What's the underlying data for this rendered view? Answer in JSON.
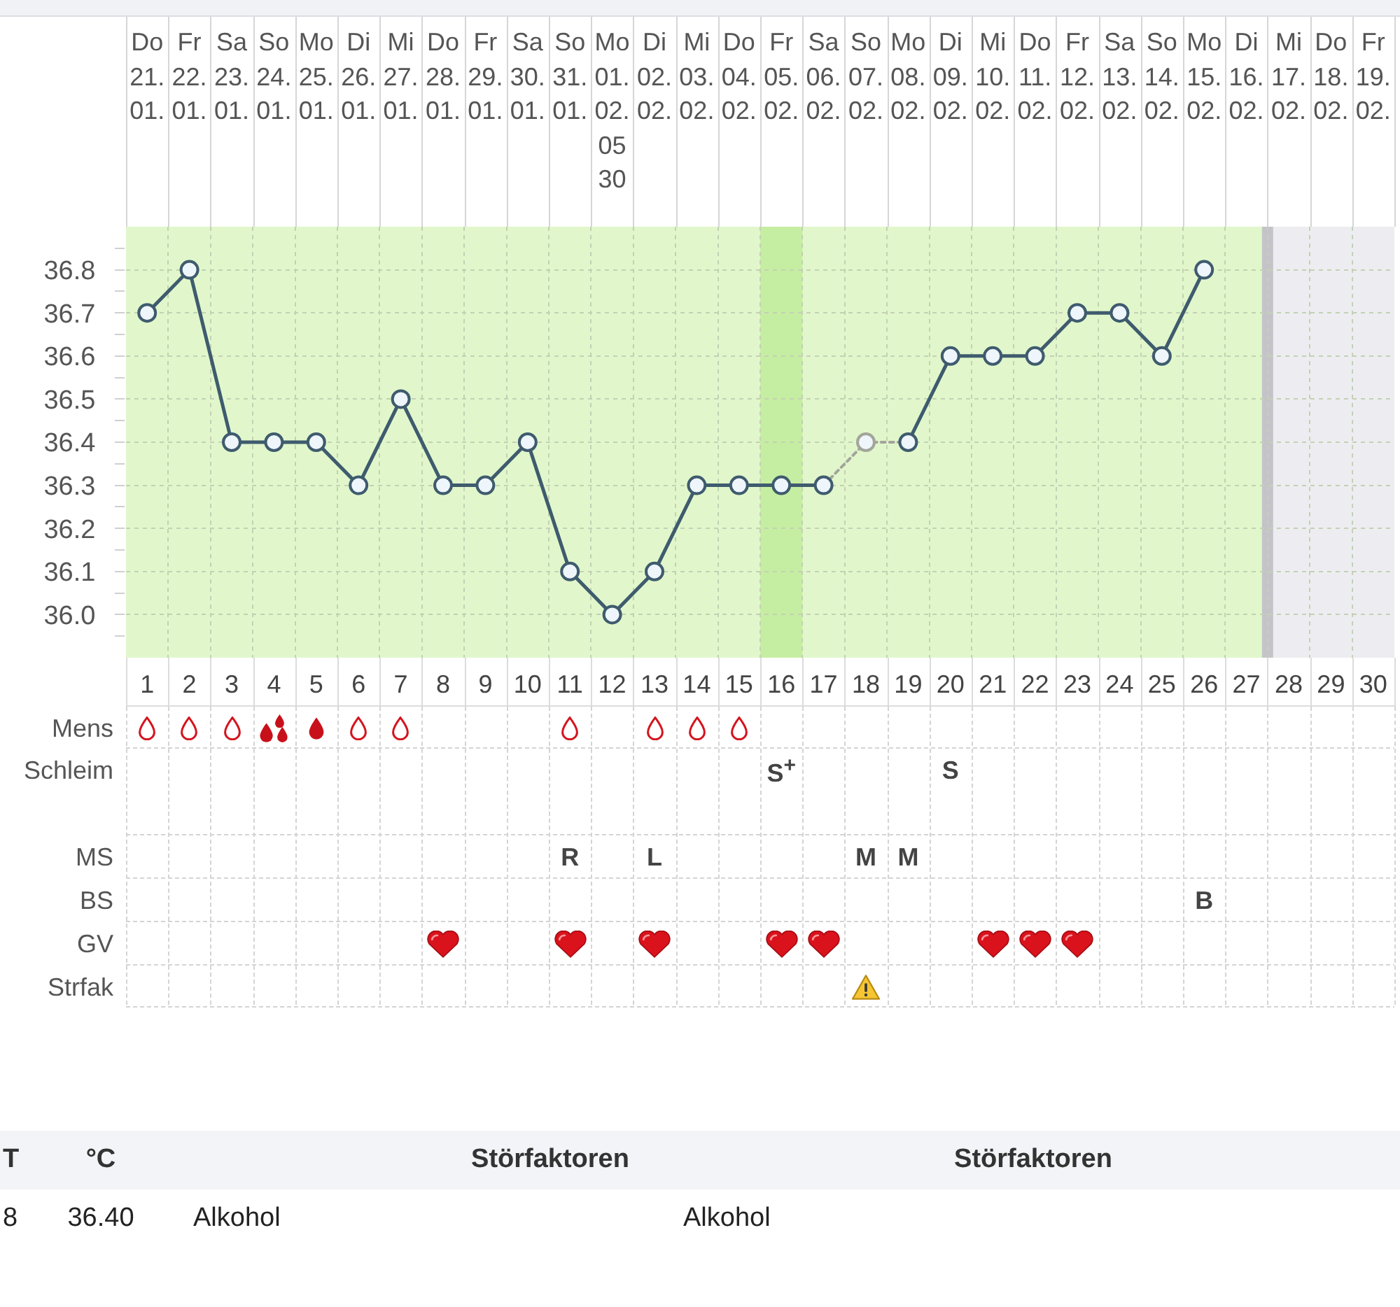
{
  "chart_data": [
    {
      "type": "line",
      "xlim": [
        0.5,
        30.5
      ],
      "xticks": [
        1,
        2,
        3,
        4,
        5,
        6,
        7,
        8,
        9,
        10,
        11,
        12,
        13,
        14,
        15,
        16,
        17,
        18,
        19,
        20,
        21,
        22,
        23,
        24,
        25,
        26,
        27,
        28,
        29,
        30
      ],
      "x2lim": [
        "--01-20T12:00",
        "--02-19T12:00"
      ],
      "x2ticks": [
        {
          "value": "--01-21",
          "label": "Do 21. 01."
        },
        {
          "value": "--01-22",
          "label": "Fr 22. 01."
        },
        {
          "value": "--01-23",
          "label": "Sa 23. 01."
        },
        {
          "value": "--01-24",
          "label": "So 24. 01."
        },
        {
          "value": "--01-25",
          "label": "Mo 25. 01."
        },
        {
          "value": "--01-26",
          "label": "Di 26. 01."
        },
        {
          "value": "--01-27",
          "label": "Mi 27. 01."
        },
        {
          "value": "--01-28",
          "label": "Do 28. 01."
        },
        {
          "value": "--01-29",
          "label": "Fr 29. 01."
        },
        {
          "value": "--01-30",
          "label": "Sa 30. 01."
        },
        {
          "value": "--01-31",
          "label": "So 31. 01."
        },
        {
          "value": "--02-01",
          "label": "Mo 01. 02. 05 30"
        },
        {
          "value": "--02-02",
          "label": "Di 02. 02."
        },
        {
          "value": "--02-03",
          "label": "Mi 03. 02."
        },
        {
          "value": "--02-04",
          "label": "Do 04. 02."
        },
        {
          "value": "--02-05",
          "label": "Fr 05. 02."
        },
        {
          "value": "--02-06",
          "label": "Sa 06. 02."
        },
        {
          "value": "--02-07",
          "label": "So 07. 02."
        },
        {
          "value": "--02-08",
          "label": "Mo 08. 02."
        },
        {
          "value": "--02-09",
          "label": "Di 09. 02."
        },
        {
          "value": "--02-10",
          "label": "Mi 10. 02."
        },
        {
          "value": "--02-11",
          "label": "Do 11. 02."
        },
        {
          "value": "--02-12",
          "label": "Fr 12. 02."
        },
        {
          "value": "--02-13",
          "label": "Sa 13. 02."
        },
        {
          "value": "--02-14",
          "label": "So 14. 02."
        },
        {
          "value": "--02-15",
          "label": "Mo 15. 02."
        },
        {
          "value": "--02-16",
          "label": "Di 16. 02."
        },
        {
          "value": "--02-17",
          "label": "Mi 17. 02."
        },
        {
          "value": "--02-18",
          "label": "Do 18. 02."
        },
        {
          "value": "--02-19",
          "label": "Fr 19. 02."
        }
      ],
      "ylim": [
        35.9,
        36.9
      ],
      "yticks": [
        {
          "value": 35.95,
          "label": null
        },
        {
          "value": 36,
          "label": "36.0"
        },
        {
          "value": 36.05,
          "label": null
        },
        36.1,
        {
          "value": 36.15,
          "label": null
        },
        36.2,
        {
          "value": 36.25,
          "label": null
        },
        36.3,
        {
          "value": 36.35,
          "label": null
        },
        36.4,
        {
          "value": 36.45,
          "label": null
        },
        36.5,
        {
          "value": 36.55,
          "label": null
        },
        36.6,
        {
          "value": 36.65,
          "label": null
        },
        36.7,
        {
          "value": 36.75,
          "label": null
        },
        36.8,
        {
          "value": 36.85,
          "label": null
        }
      ],
      "grid": true,
      "marker": "circle",
      "line_style": "solid",
      "bands": [
        {
          "axis": "x",
          "from": 0.5,
          "to": 27.5,
          "color": "#e1f7cb"
        },
        {
          "axis": "x",
          "from": 15.5,
          "to": 16.5,
          "color": "#c6eea2"
        },
        {
          "axis": "x",
          "from": 27.5,
          "to": 30.5,
          "color": "#ededf1"
        }
      ],
      "ref_lines": [
        {
          "axis": "x",
          "value": 27.5,
          "color": "#c4c4c8"
        }
      ],
      "series": [
        {
          "type": "line",
          "color": "#a3a59b",
          "line_style": "dotted",
          "marker": "none",
          "x": [
            17,
            18,
            19
          ],
          "values": [
            36.3,
            36.4,
            36.4
          ]
        },
        {
          "type": "scatter",
          "color": "#a3a59b",
          "x": [
            18
          ],
          "values": [
            36.4
          ]
        },
        {
          "type": "line",
          "color": "#3f5b6e",
          "x": [
            1,
            2,
            3,
            4,
            5,
            6,
            7,
            8,
            9,
            10,
            11,
            12,
            13,
            14,
            15,
            16,
            17,
            18,
            19,
            20,
            21,
            22,
            23,
            24,
            25,
            26
          ],
          "values": [
            36.7,
            36.8,
            36.4,
            36.4,
            36.4,
            36.3,
            36.5,
            36.3,
            36.3,
            36.4,
            36.1,
            36.0,
            36.1,
            36.3,
            36.3,
            36.3,
            36.3,
            null,
            36.4,
            36.6,
            36.6,
            36.6,
            36.7,
            36.7,
            36.6,
            36.8
          ]
        }
      ]
    },
    {
      "type": "other",
      "categories": [
        null,
        null,
        null,
        null,
        null,
        null,
        null,
        null,
        null,
        null,
        null,
        null,
        null,
        null,
        null,
        null,
        null,
        null,
        null,
        null,
        null,
        null,
        null,
        null,
        null,
        null,
        null,
        null,
        null,
        null
      ],
      "y_categories": [
        "Mens",
        "Schleim",
        "MS",
        "BS",
        "GV",
        "Strfak"
      ],
      "cell_labels": [
        [
          null,
          null,
          null,
          null,
          null,
          null,
          null,
          null,
          null,
          null,
          null,
          null,
          null,
          null,
          null,
          null,
          null,
          null,
          null,
          null,
          null,
          null,
          null,
          null,
          null,
          null,
          null,
          null,
          null,
          null
        ],
        [
          null,
          null,
          null,
          null,
          null,
          null,
          null,
          null,
          null,
          null,
          null,
          null,
          null,
          null,
          null,
          "S$^{+}$",
          null,
          null,
          null,
          "S",
          null,
          null,
          null,
          null,
          null,
          null,
          null,
          null,
          null,
          null
        ],
        [
          null,
          null,
          null,
          null,
          null,
          null,
          null,
          null,
          null,
          null,
          "R",
          null,
          "L",
          null,
          null,
          null,
          null,
          "M",
          "M",
          null,
          null,
          null,
          null,
          null,
          null,
          null,
          null,
          null,
          null,
          null
        ],
        [
          null,
          null,
          null,
          null,
          null,
          null,
          null,
          null,
          null,
          null,
          null,
          null,
          null,
          null,
          null,
          null,
          null,
          null,
          null,
          null,
          null,
          null,
          null,
          null,
          null,
          "B",
          null,
          null,
          null,
          null
        ],
        [
          null,
          null,
          null,
          null,
          null,
          null,
          null,
          null,
          null,
          null,
          null,
          null,
          null,
          null,
          null,
          null,
          null,
          null,
          null,
          null,
          null,
          null,
          null,
          null,
          null,
          null,
          null,
          null,
          null,
          null
        ],
        [
          null,
          null,
          null,
          null,
          null,
          null,
          null,
          null,
          null,
          null,
          null,
          null,
          null,
          null,
          null,
          null,
          null,
          null,
          null,
          null,
          null,
          null,
          null,
          null,
          null,
          null,
          null,
          null,
          null,
          null
        ]
      ]
    },
    {
      "type": "other",
      "categories": [
        "T",
        "°C",
        "Störfaktoren",
        "Störfaktoren"
      ],
      "cell_labels": [
        [
          "8",
          "36.40",
          "Alkohol",
          "Alkohol"
        ]
      ]
    }
  ]
}
